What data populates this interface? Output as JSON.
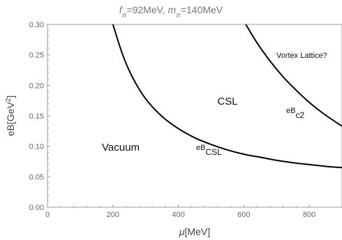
{
  "chart_data": {
    "type": "line",
    "title": {
      "f": "f",
      "f_sub": "π",
      "f_value": "=92MeV, ",
      "m": "m",
      "m_sub": "π",
      "m_value": "=140MeV"
    },
    "xlabel": {
      "symbol": "μ",
      "unit": "[MeV]"
    },
    "ylabel": {
      "main": "eB[GeV",
      "exp": "2",
      "close": "]"
    },
    "xlim": [
      0,
      900
    ],
    "ylim": [
      0,
      0.3
    ],
    "x_ticks": [
      0,
      200,
      400,
      600,
      800
    ],
    "x_tick_labels": [
      "0",
      "200",
      "400",
      "600",
      "800"
    ],
    "y_ticks": [
      0,
      0.05,
      0.1,
      0.15,
      0.2,
      0.25,
      0.3
    ],
    "y_tick_labels": [
      "0.00",
      "0.05",
      "0.10",
      "0.15",
      "0.20",
      "0.25",
      "0.30"
    ],
    "grid": false,
    "series": [
      {
        "label_main": "eB",
        "label_sub": "CSL",
        "x": [
          200,
          230,
          260,
          300,
          350,
          400,
          450,
          500,
          550,
          600,
          650,
          700,
          750,
          800,
          850,
          900
        ],
        "y": [
          0.3,
          0.25,
          0.213,
          0.178,
          0.149,
          0.129,
          0.114,
          0.103,
          0.094,
          0.087,
          0.082,
          0.077,
          0.073,
          0.07,
          0.067,
          0.065
        ],
        "color": "#000000"
      },
      {
        "label_main": "eB",
        "label_sub": "c2",
        "x": [
          606,
          640,
          680,
          720,
          760,
          800,
          840,
          880,
          900
        ],
        "y": [
          0.3,
          0.27,
          0.24,
          0.214,
          0.192,
          0.172,
          0.155,
          0.14,
          0.133
        ],
        "color": "#000000"
      }
    ],
    "annotations": {
      "vacuum": "Vacuum",
      "csl": "CSL",
      "vortex": "Vortex Lattice?"
    }
  }
}
